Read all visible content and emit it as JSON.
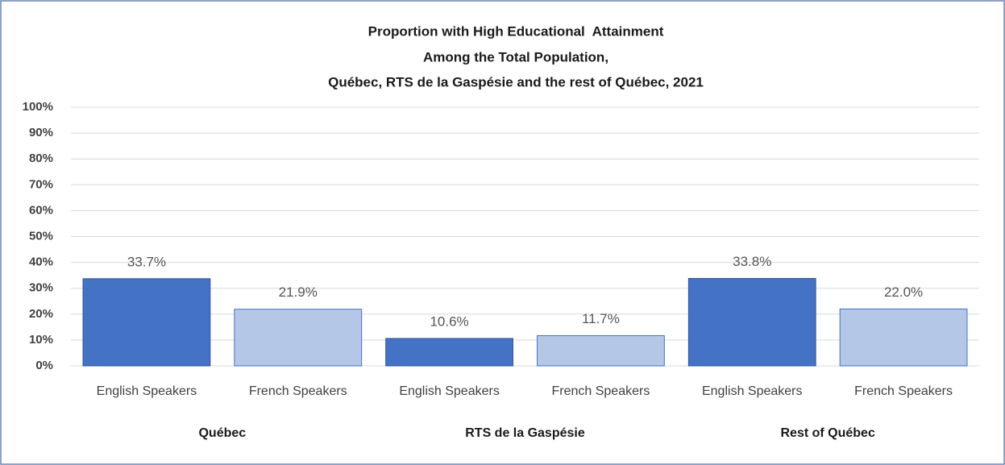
{
  "chart_data": {
    "type": "bar",
    "title": [
      "Proportion with High Educational  Attainment",
      "Among the Total Population,",
      "Québec, RTS de la Gaspésie and the rest of Québec, 2021"
    ],
    "categories": [
      "English Speakers",
      "French Speakers",
      "English Speakers",
      "French Speakers",
      "English Speakers",
      "French Speakers"
    ],
    "groups": [
      "Québec",
      "RTS de la Gaspésie",
      "Rest of Québec"
    ],
    "values": [
      33.7,
      21.9,
      10.6,
      11.7,
      33.8,
      22.0
    ],
    "value_labels": [
      "33.7%",
      "21.9%",
      "10.6%",
      "11.7%",
      "33.8%",
      "22.0%"
    ],
    "colors": [
      "#4472c4",
      "#b4c7e7",
      "#4472c4",
      "#b4c7e7",
      "#4472c4",
      "#b4c7e7"
    ],
    "ylim": [
      0,
      100
    ],
    "yticks": [
      {
        "value": 0,
        "label": "0%"
      },
      {
        "value": 10,
        "label": "10%"
      },
      {
        "value": 20,
        "label": "20%"
      },
      {
        "value": 30,
        "label": "30%"
      },
      {
        "value": 40,
        "label": "40%"
      },
      {
        "value": 50,
        "label": "50%"
      },
      {
        "value": 60,
        "label": "60%"
      },
      {
        "value": 70,
        "label": "70%"
      },
      {
        "value": 80,
        "label": "80%"
      },
      {
        "value": 90,
        "label": "90%"
      },
      {
        "value": 100,
        "label": "100%"
      }
    ],
    "grid": true
  }
}
